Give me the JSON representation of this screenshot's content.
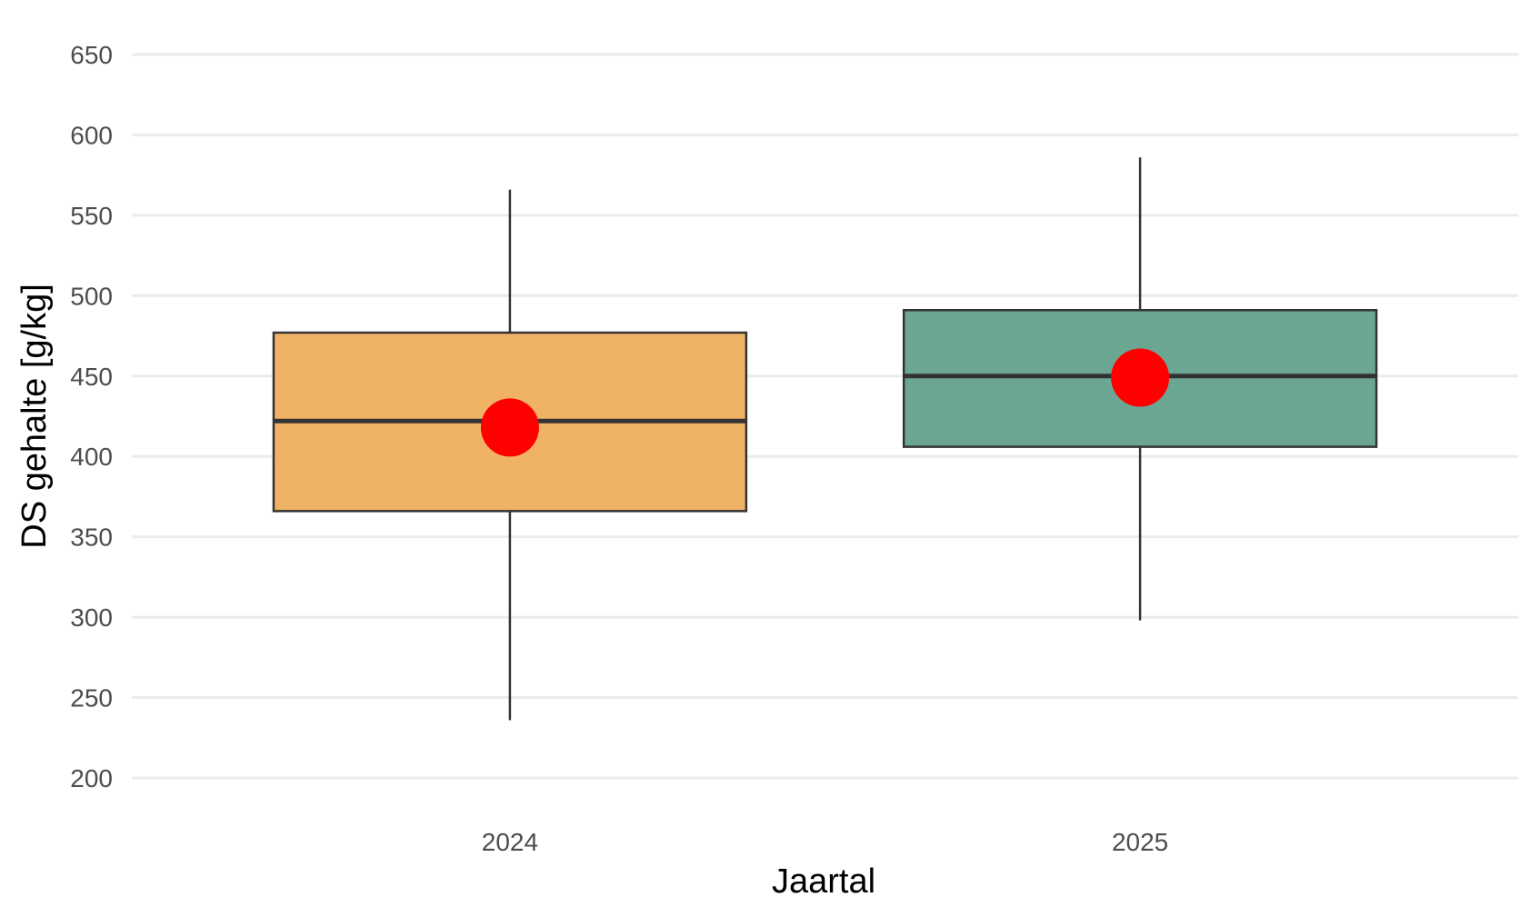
{
  "chart_data": {
    "type": "boxplot",
    "title": "",
    "xlabel": "Jaartal",
    "ylabel": "DS gehalte [g/kg]",
    "ylim": [
      200,
      650
    ],
    "yticks": [
      "200",
      "250",
      "300",
      "350",
      "400",
      "450",
      "500",
      "550",
      "600",
      "650"
    ],
    "grid": true,
    "legend": "none",
    "categories": [
      "2024",
      "2025"
    ],
    "boxes": [
      {
        "category": "2024",
        "whisker_low": 236,
        "q1": 366,
        "median": 422,
        "q3": 477,
        "whisker_high": 566,
        "mean": 418,
        "fill": "#f0b366"
      },
      {
        "category": "2025",
        "whisker_low": 298,
        "q1": 406,
        "median": 450,
        "q3": 491,
        "whisker_high": 586,
        "mean": 449,
        "fill": "#6aa692"
      }
    ],
    "mean_color": "#ff0000"
  }
}
